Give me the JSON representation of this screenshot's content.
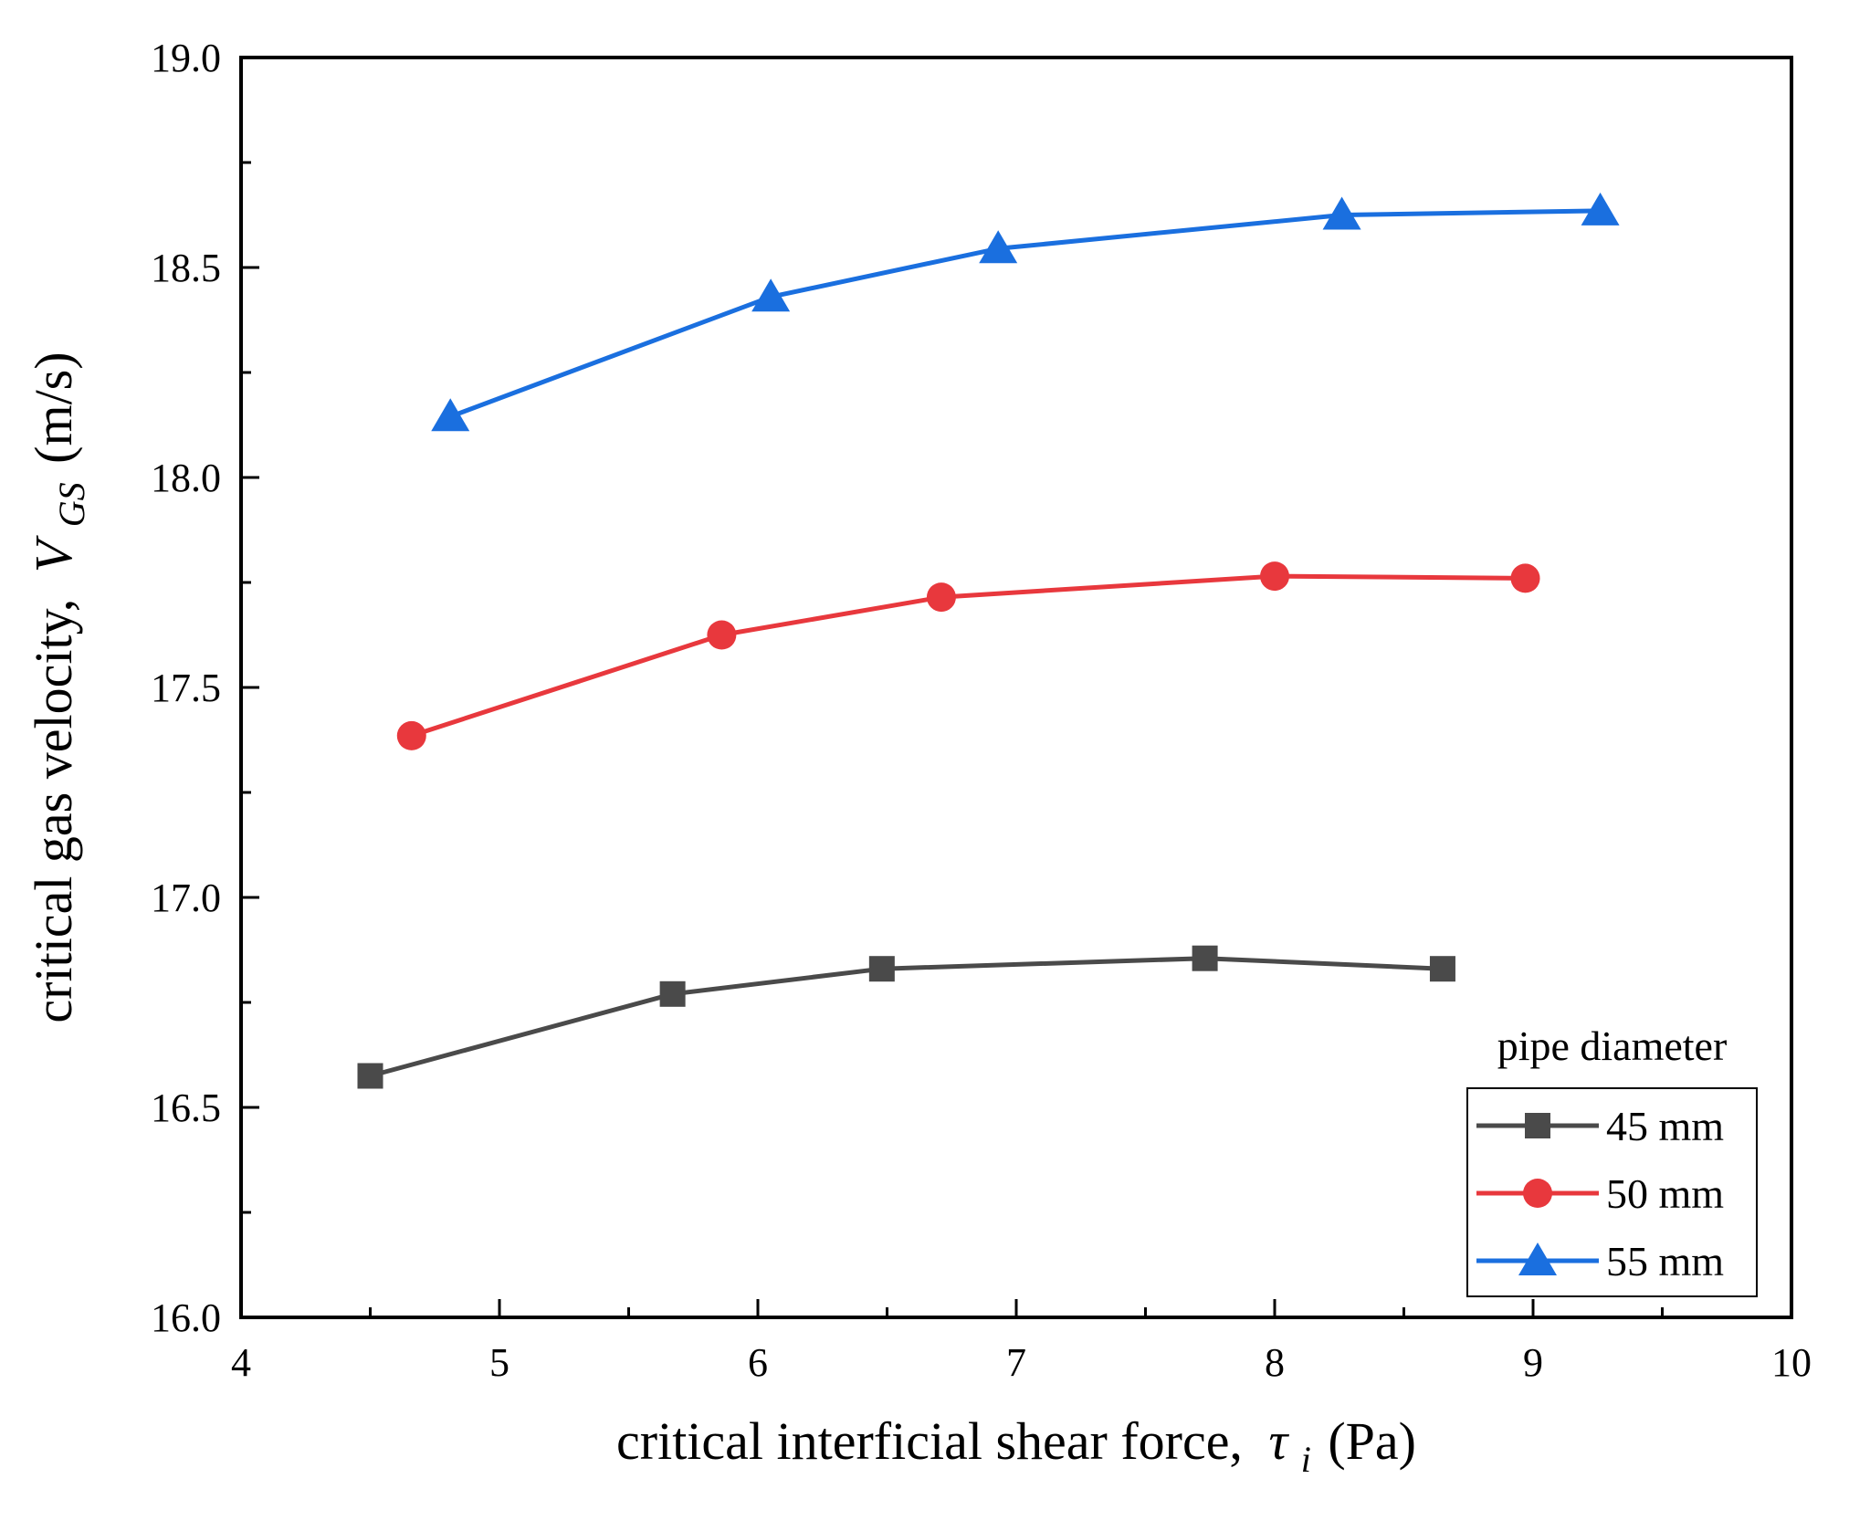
{
  "chart_data": {
    "type": "line",
    "xlabel": "critical interficial shear force,",
    "xlabel_symbol": "τ",
    "xlabel_subscript": "i",
    "xlabel_unit": "(Pa)",
    "ylabel": "critical gas velocity,",
    "ylabel_symbol": "V",
    "ylabel_subscript": "GS",
    "ylabel_unit": "(m/s)",
    "xlim": [
      4,
      10
    ],
    "ylim": [
      16.0,
      19.0
    ],
    "xticks": [
      4,
      5,
      6,
      7,
      8,
      9,
      10
    ],
    "xtick_labels": [
      "4",
      "5",
      "6",
      "7",
      "8",
      "9",
      "10"
    ],
    "yticks": [
      16.0,
      16.5,
      17.0,
      17.5,
      18.0,
      18.5,
      19.0
    ],
    "ytick_labels": [
      "16.0",
      "16.5",
      "17.0",
      "17.5",
      "18.0",
      "18.5",
      "19.0"
    ],
    "legend_title": "pipe diameter",
    "legend_position": "bottom-right",
    "series": [
      {
        "name": "45 mm",
        "color": "#4a4a4a",
        "marker": "square",
        "x": [
          4.5,
          5.67,
          6.48,
          7.73,
          8.65
        ],
        "y": [
          16.575,
          16.77,
          16.83,
          16.855,
          16.83
        ]
      },
      {
        "name": "50 mm",
        "color": "#e8383d",
        "marker": "circle",
        "x": [
          4.66,
          5.86,
          6.71,
          8.0,
          8.97
        ],
        "y": [
          17.385,
          17.625,
          17.715,
          17.765,
          17.76
        ]
      },
      {
        "name": "55 mm",
        "color": "#1a6fdf",
        "marker": "triangle",
        "x": [
          4.81,
          6.05,
          6.93,
          8.26,
          9.26
        ],
        "y": [
          18.145,
          18.43,
          18.545,
          18.625,
          18.635
        ]
      }
    ]
  }
}
